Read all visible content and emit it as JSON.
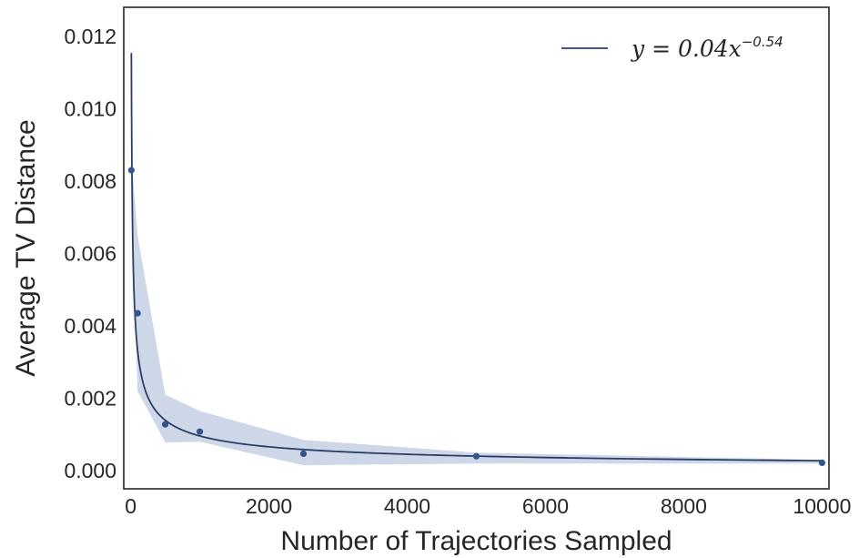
{
  "chart_data": {
    "type": "line",
    "title": "",
    "xlabel": "Number of Trajectories Sampled",
    "ylabel": "Average TV Distance",
    "xlim": [
      -100,
      10100
    ],
    "ylim": [
      -0.0005,
      0.0128
    ],
    "x_ticks": [
      0,
      2000,
      4000,
      6000,
      8000,
      10000
    ],
    "x_tick_labels": [
      "0",
      "2000",
      "4000",
      "6000",
      "8000",
      "10000"
    ],
    "y_ticks": [
      0.0,
      0.002,
      0.004,
      0.006,
      0.008,
      0.01,
      0.012
    ],
    "y_tick_labels": [
      "0.000",
      "0.002",
      "0.004",
      "0.006",
      "0.008",
      "0.010",
      "0.012"
    ],
    "grid": false,
    "legend_position": "top-right",
    "legend": {
      "prefix": "y = 0.04x",
      "exponent": "−0.54"
    },
    "fit": {
      "a": 0.04,
      "b": -0.54,
      "x_range": [
        10,
        10000
      ],
      "color": "#2b3f66"
    },
    "points": {
      "color": "#34548f",
      "x": [
        10,
        100,
        500,
        1000,
        2500,
        5000,
        10000
      ],
      "y": [
        0.0083,
        0.00435,
        0.00128,
        0.00108,
        0.00047,
        0.0004,
        0.00022
      ]
    },
    "band": {
      "color": "#c9d3e6",
      "x": [
        10,
        100,
        500,
        1000,
        2500,
        5000,
        10000
      ],
      "lower": [
        0.0075,
        0.0022,
        0.00078,
        0.0008,
        0.00015,
        0.0002,
        0.0002
      ],
      "upper": [
        0.0087,
        0.0065,
        0.0021,
        0.00165,
        0.00085,
        0.0005,
        0.0003
      ]
    }
  }
}
